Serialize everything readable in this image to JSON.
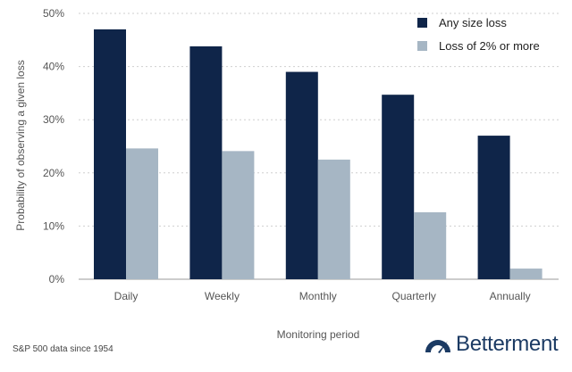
{
  "chart_data": {
    "type": "bar",
    "categories": [
      "Daily",
      "Weekly",
      "Monthly",
      "Quarterly",
      "Annually"
    ],
    "series": [
      {
        "name": "Any size loss",
        "values": [
          47,
          43.8,
          39,
          34.7,
          27
        ],
        "color": "#0f2549"
      },
      {
        "name": "Loss of 2% or more",
        "values": [
          24.6,
          24.1,
          22.5,
          12.6,
          2
        ],
        "color": "#a6b6c4"
      }
    ],
    "xlabel": "Monitoring period",
    "ylabel": "Probability of observing a given loss",
    "ylim": [
      0,
      50
    ],
    "yticks": [
      0,
      10,
      20,
      30,
      40,
      50
    ],
    "ytick_format": "percent",
    "grid": "horizontal-dotted",
    "legend": "top-right"
  },
  "footnote": "S&P 500 data since 1954",
  "brand": {
    "name": "Betterment",
    "icon": "gauge-icon",
    "color": "#1b3a63"
  }
}
